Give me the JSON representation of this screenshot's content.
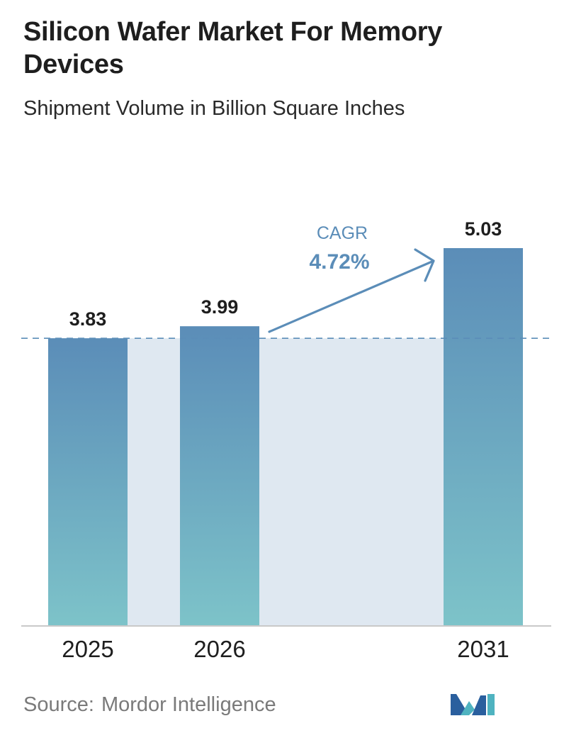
{
  "header": {
    "title": "Silicon Wafer Market For Memory Devices",
    "subtitle": "Shipment Volume in Billion Square Inches"
  },
  "chart_data": {
    "type": "bar",
    "categories": [
      "2025",
      "2026",
      "2031"
    ],
    "values": [
      3.83,
      3.99,
      5.03
    ],
    "value_labels": [
      "3.83",
      "3.99",
      "5.03"
    ],
    "title": "Silicon Wafer Market For Memory Devices",
    "subtitle": "Shipment Volume in Billion Square Inches",
    "xlabel": "",
    "ylabel": "",
    "ylim": [
      0,
      5.03
    ],
    "grid": false,
    "baseline_reference": 3.83,
    "annotation": {
      "label": "CAGR",
      "value": "4.72%"
    },
    "colors": {
      "bar_top": "#5b8db8",
      "bar_bottom": "#7dc3c9",
      "band": "#dfe8f1",
      "annotation": "#5b8db8",
      "reference_line": "#5b8db8"
    }
  },
  "footer": {
    "source_label": "Source:",
    "source_name": "Mordor Intelligence"
  },
  "logo": {
    "icon": "mordor-intelligence-logo-icon",
    "colors": [
      "#2a5f9e",
      "#4fb3c0"
    ]
  }
}
